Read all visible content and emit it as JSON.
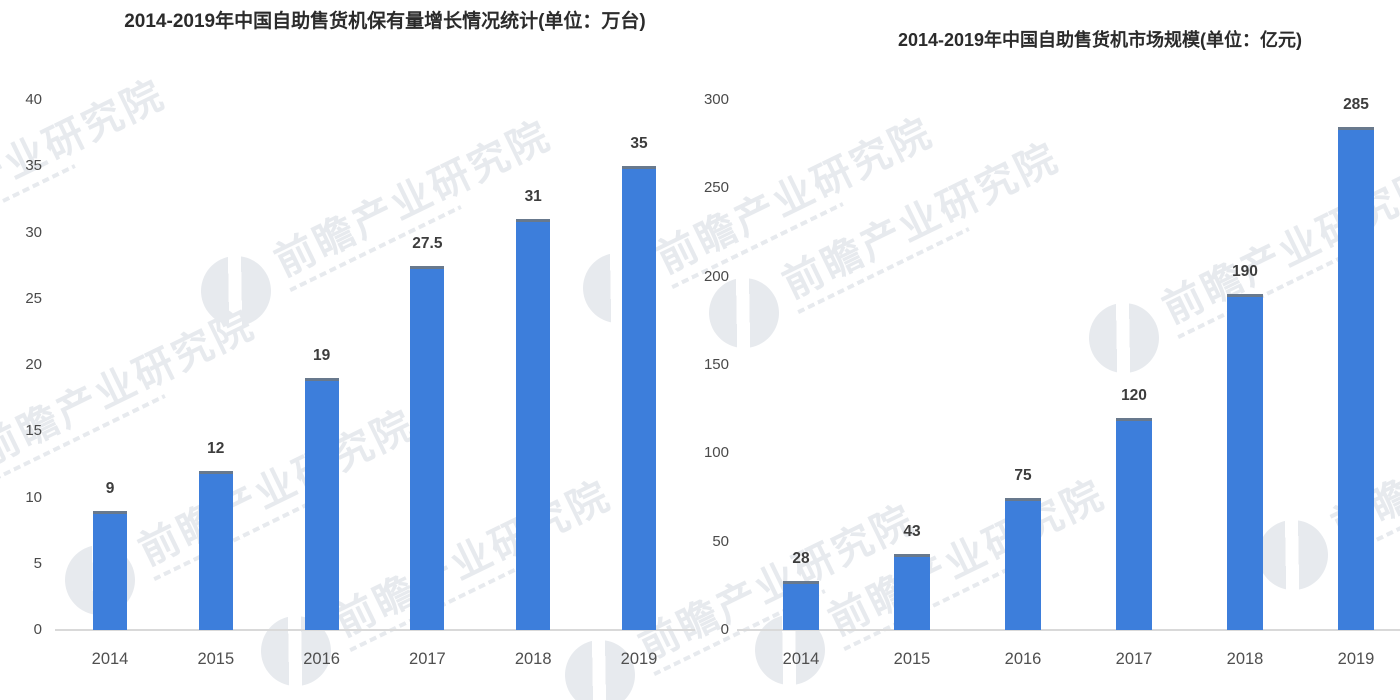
{
  "page": {
    "background": "#ffffff"
  },
  "colors": {
    "bar": "#3d7edb",
    "bar_top_edge": "#68798d",
    "axis_line": "#d9d9d9",
    "title": "#2b2b2b",
    "tick_label": "#4a4a4a",
    "value_label": "#3d3d3d",
    "category_label": "#4f4f4f",
    "watermark": "#e7eaee"
  },
  "watermark": {
    "text": "前瞻产业研究院"
  },
  "chart_data": [
    {
      "type": "bar",
      "title": "2014-2019年中国自助售货机保有量增长情况统计(单位：万台)",
      "unit": "万台",
      "categories": [
        "2014",
        "2015",
        "2016",
        "2017",
        "2018",
        "2019"
      ],
      "values": [
        9,
        12,
        19,
        27.5,
        31,
        35
      ],
      "xlabel": "",
      "ylabel": "",
      "ylim": [
        0,
        40
      ],
      "yticks": [
        0,
        5,
        10,
        15,
        20,
        25,
        30,
        35,
        40
      ],
      "grid": false,
      "legend_position": "none"
    },
    {
      "type": "bar",
      "title": "2014-2019年中国自助售货机市场规模(单位：亿元)",
      "unit": "亿元",
      "categories": [
        "2014",
        "2015",
        "2016",
        "2017",
        "2018",
        "2019"
      ],
      "values": [
        28,
        43,
        75,
        120,
        190,
        285
      ],
      "xlabel": "",
      "ylabel": "",
      "ylim": [
        0,
        300
      ],
      "yticks": [
        0,
        50,
        100,
        150,
        200,
        250,
        300
      ],
      "grid": false,
      "legend_position": "none"
    }
  ]
}
